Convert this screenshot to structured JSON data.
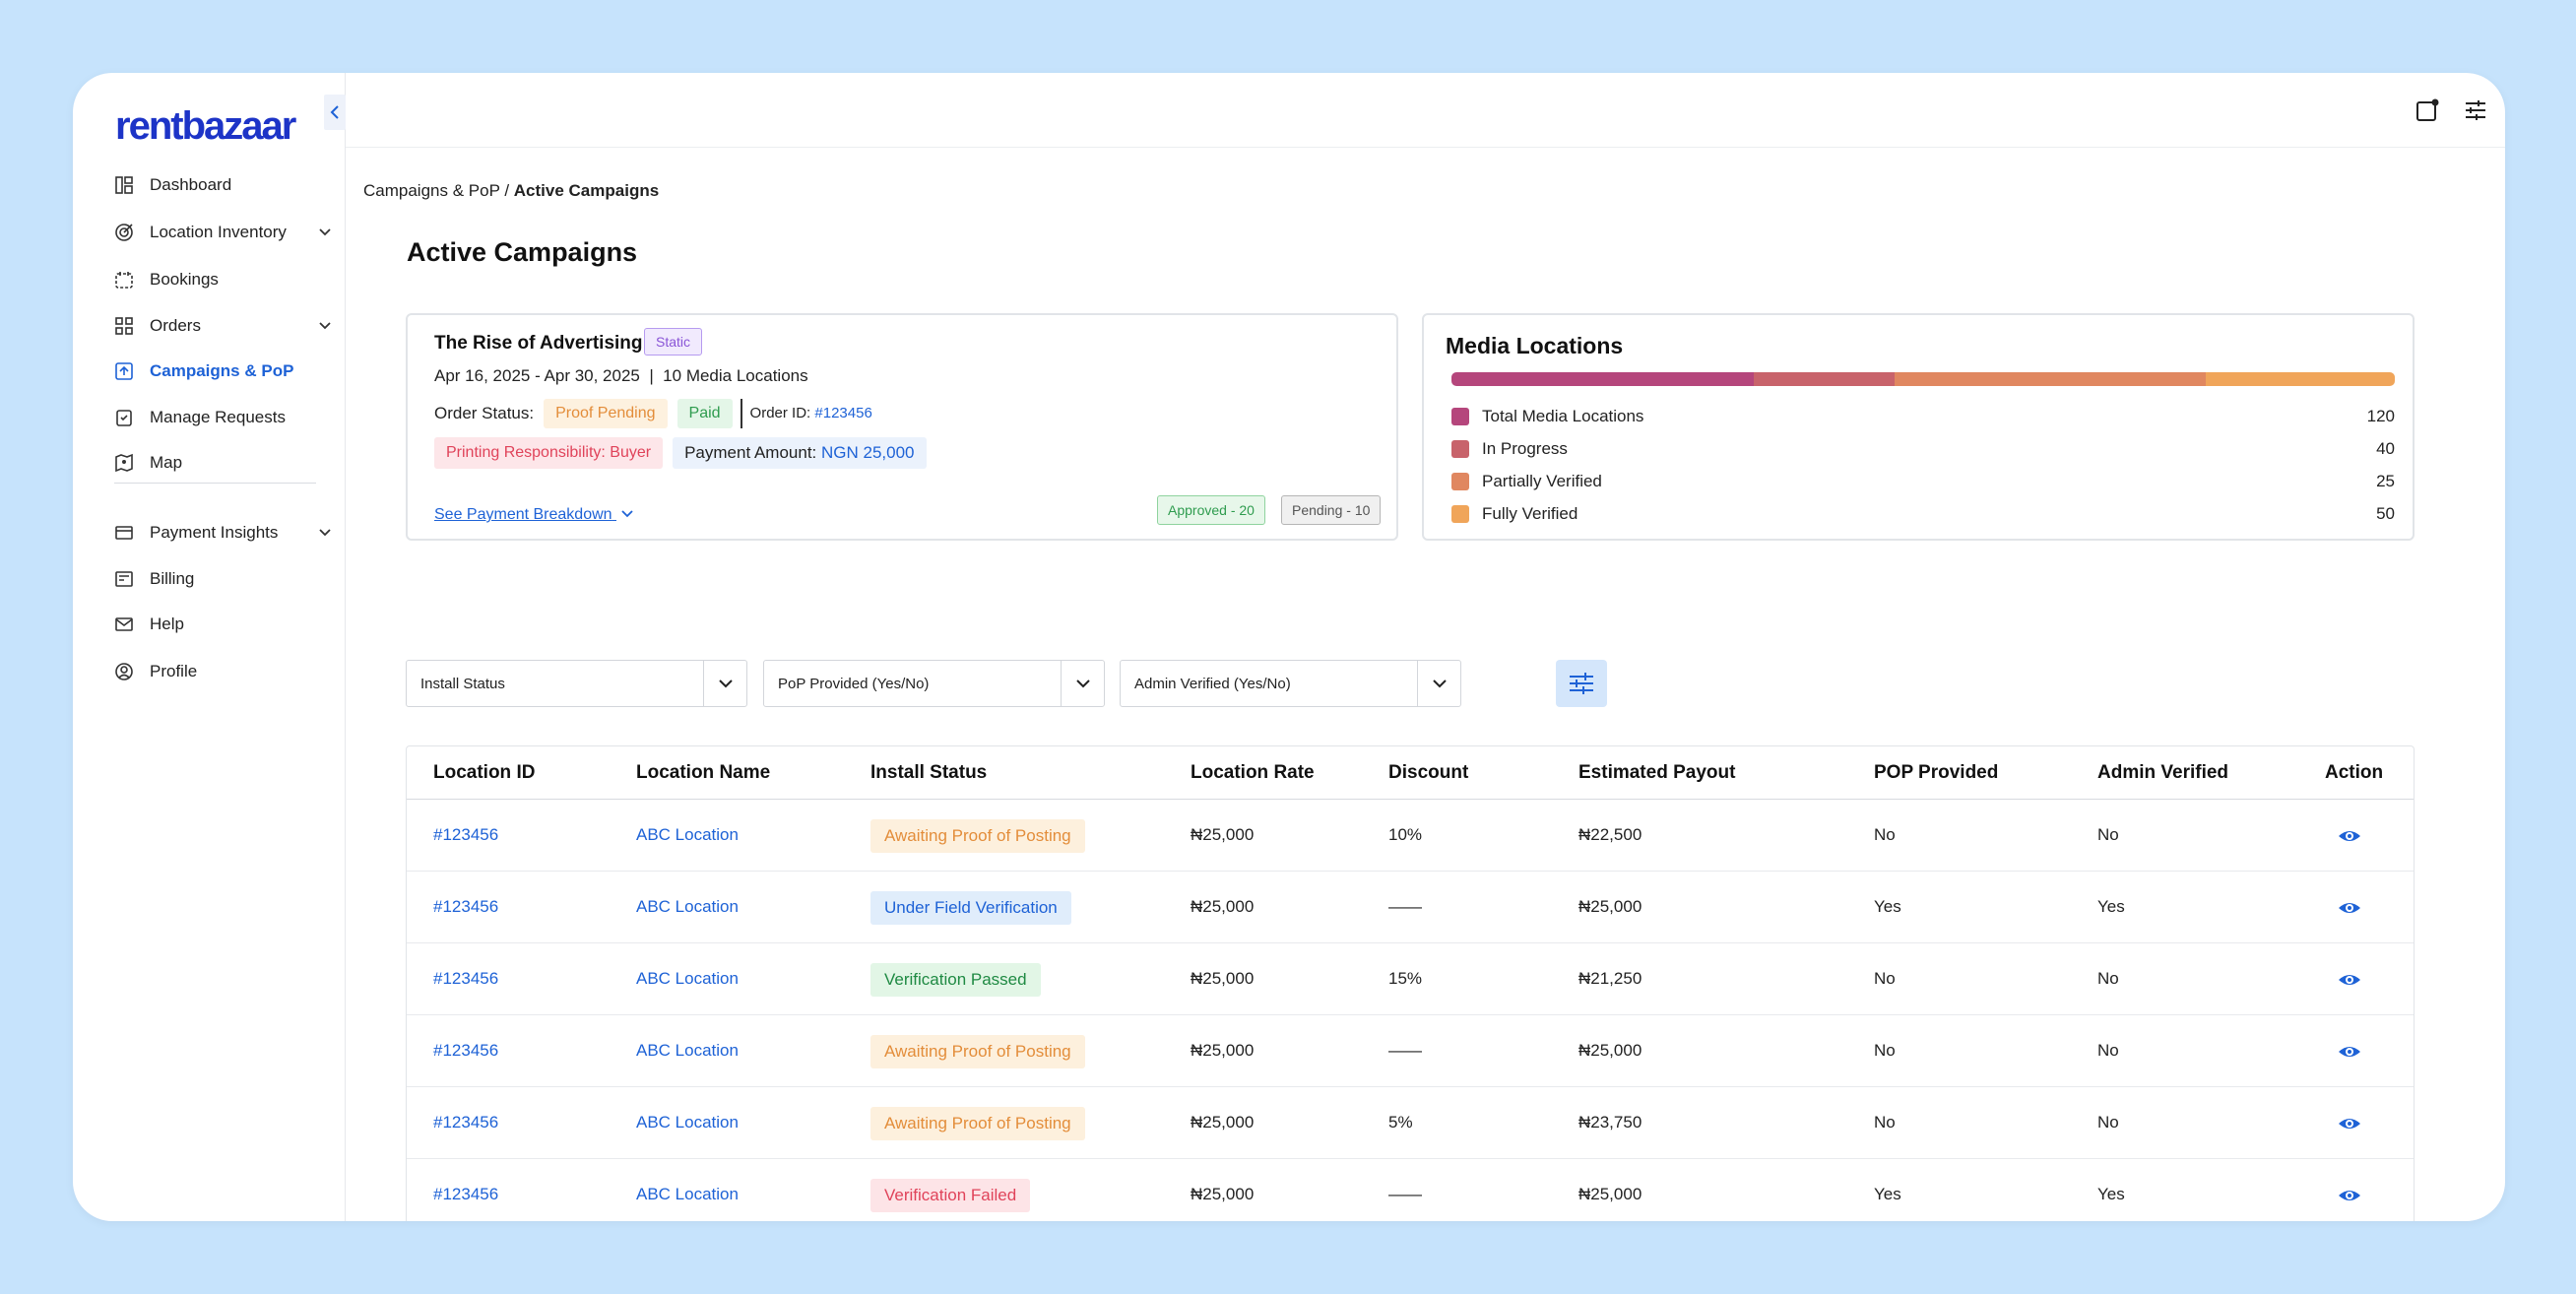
{
  "app": {
    "logo": "rentbazaar"
  },
  "sidebar": {
    "items": [
      {
        "label": "Dashboard",
        "icon": "dashboard-icon"
      },
      {
        "label": "Location Inventory",
        "icon": "location-target-icon"
      },
      {
        "label": "Bookings",
        "icon": "calendar-icon"
      },
      {
        "label": "Orders",
        "icon": "grid-icon"
      },
      {
        "label": "Campaigns & PoP",
        "icon": "campaign-icon"
      },
      {
        "label": "Manage Requests",
        "icon": "request-icon"
      },
      {
        "label": "Map",
        "icon": "map-icon"
      },
      {
        "label": "Payment Insights",
        "icon": "payment-icon"
      },
      {
        "label": "Billing",
        "icon": "billing-icon"
      },
      {
        "label": "Help",
        "icon": "mail-icon"
      },
      {
        "label": "Profile",
        "icon": "profile-icon"
      }
    ],
    "active": "Campaigns & PoP",
    "accent": "#1e62d6"
  },
  "breadcrumb": {
    "parent": "Campaigns & PoP / ",
    "current": "Active Campaigns"
  },
  "page_title": "Active Campaigns",
  "campaign": {
    "title": "The Rise of Advertising",
    "type_tag": "Static",
    "dates": "Apr 16, 2025 - Apr 30, 2025  |  10 Media Locations",
    "order_status_label": "Order Status:",
    "status_proof": "Proof Pending",
    "status_paid": "Paid",
    "order_id_label": "Order ID: ",
    "order_id": "#123456",
    "printing_responsibility": "Printing Responsibility: Buyer",
    "payment_label": "Payment Amount: ",
    "payment_amount": "NGN 25,000",
    "breakdown_link": "See Payment Breakdown",
    "approved": "Approved - 20",
    "pending": "Pending - 10"
  },
  "media_locations": {
    "title": "Media Locations",
    "items": [
      {
        "label": "Total Media Locations",
        "value": "120",
        "color": "#b5467c"
      },
      {
        "label": "In Progress",
        "value": "40",
        "color": "#c8636b"
      },
      {
        "label": "Partially Verified",
        "value": "25",
        "color": "#e08760"
      },
      {
        "label": "Fully Verified",
        "value": "50",
        "color": "#f0a55a"
      }
    ],
    "bar_fractions": [
      0.32,
      0.15,
      0.33,
      0.2
    ]
  },
  "filters": {
    "install_status": "Install Status",
    "pop_provided": "PoP Provided (Yes/No)",
    "admin_verified": "Admin Verified (Yes/No)"
  },
  "table": {
    "headers": [
      "Location ID",
      "Location Name",
      "Install Status",
      "Location Rate",
      "Discount",
      "Estimated Payout",
      "POP Provided",
      "Admin Verified",
      "Action"
    ],
    "rows": [
      {
        "id": "#123456",
        "name": "ABC Location",
        "status": "Awaiting Proof of Posting",
        "status_kind": "await",
        "rate": "₦25,000",
        "discount": "10%",
        "payout": "₦22,500",
        "pop": "No",
        "admin": "No"
      },
      {
        "id": "#123456",
        "name": "ABC Location",
        "status": "Under Field Verification",
        "status_kind": "field",
        "rate": "₦25,000",
        "discount": "——",
        "payout": "₦25,000",
        "pop": "Yes",
        "admin": "Yes"
      },
      {
        "id": "#123456",
        "name": "ABC Location",
        "status": "Verification Passed",
        "status_kind": "pass",
        "rate": "₦25,000",
        "discount": "15%",
        "payout": "₦21,250",
        "pop": "No",
        "admin": "No"
      },
      {
        "id": "#123456",
        "name": "ABC Location",
        "status": "Awaiting Proof of Posting",
        "status_kind": "await",
        "rate": "₦25,000",
        "discount": "——",
        "payout": "₦25,000",
        "pop": "No",
        "admin": "No"
      },
      {
        "id": "#123456",
        "name": "ABC Location",
        "status": "Awaiting Proof of Posting",
        "status_kind": "await",
        "rate": "₦25,000",
        "discount": "5%",
        "payout": "₦23,750",
        "pop": "No",
        "admin": "No"
      },
      {
        "id": "#123456",
        "name": "ABC Location",
        "status": "Verification Failed",
        "status_kind": "fail",
        "rate": "₦25,000",
        "discount": "——",
        "payout": "₦25,000",
        "pop": "Yes",
        "admin": "Yes"
      }
    ]
  }
}
